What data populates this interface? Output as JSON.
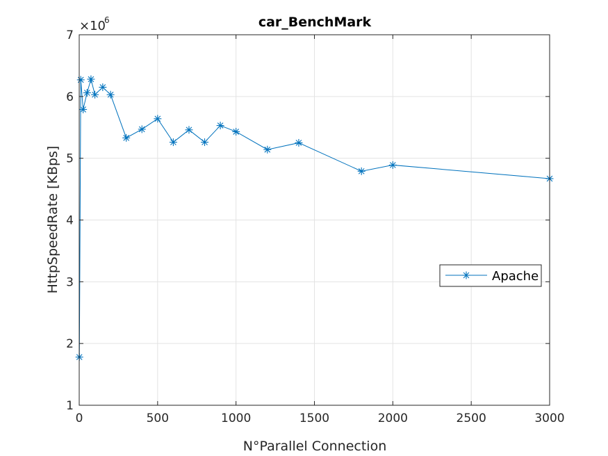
{
  "chart_data": {
    "type": "line",
    "title": "car_BenchMark",
    "xlabel": "N°Parallel Connection",
    "ylabel": "HttpSpeedRate [KBps]",
    "y_exponent_label": "×10",
    "y_exponent": "6",
    "xlim": [
      0,
      3000
    ],
    "ylim": [
      1,
      7
    ],
    "xticks": [
      0,
      500,
      1000,
      1500,
      2000,
      2500,
      3000
    ],
    "yticks": [
      1,
      2,
      3,
      4,
      5,
      6,
      7
    ],
    "grid": true,
    "legend_position": "right",
    "series": [
      {
        "name": "Apache",
        "color": "#0072BD",
        "marker": "asterisk",
        "points": [
          {
            "x": 1,
            "y": 1.78
          },
          {
            "x": 10,
            "y": 6.27
          },
          {
            "x": 25,
            "y": 5.79
          },
          {
            "x": 50,
            "y": 6.06
          },
          {
            "x": 75,
            "y": 6.28
          },
          {
            "x": 100,
            "y": 6.03
          },
          {
            "x": 150,
            "y": 6.15
          },
          {
            "x": 200,
            "y": 6.03
          },
          {
            "x": 300,
            "y": 5.33
          },
          {
            "x": 400,
            "y": 5.47
          },
          {
            "x": 500,
            "y": 5.64
          },
          {
            "x": 600,
            "y": 5.26
          },
          {
            "x": 700,
            "y": 5.46
          },
          {
            "x": 800,
            "y": 5.26
          },
          {
            "x": 900,
            "y": 5.53
          },
          {
            "x": 1000,
            "y": 5.43
          },
          {
            "x": 1200,
            "y": 5.14
          },
          {
            "x": 1400,
            "y": 5.25
          },
          {
            "x": 1800,
            "y": 4.79
          },
          {
            "x": 2000,
            "y": 4.89
          },
          {
            "x": 3000,
            "y": 4.67
          }
        ]
      }
    ]
  }
}
